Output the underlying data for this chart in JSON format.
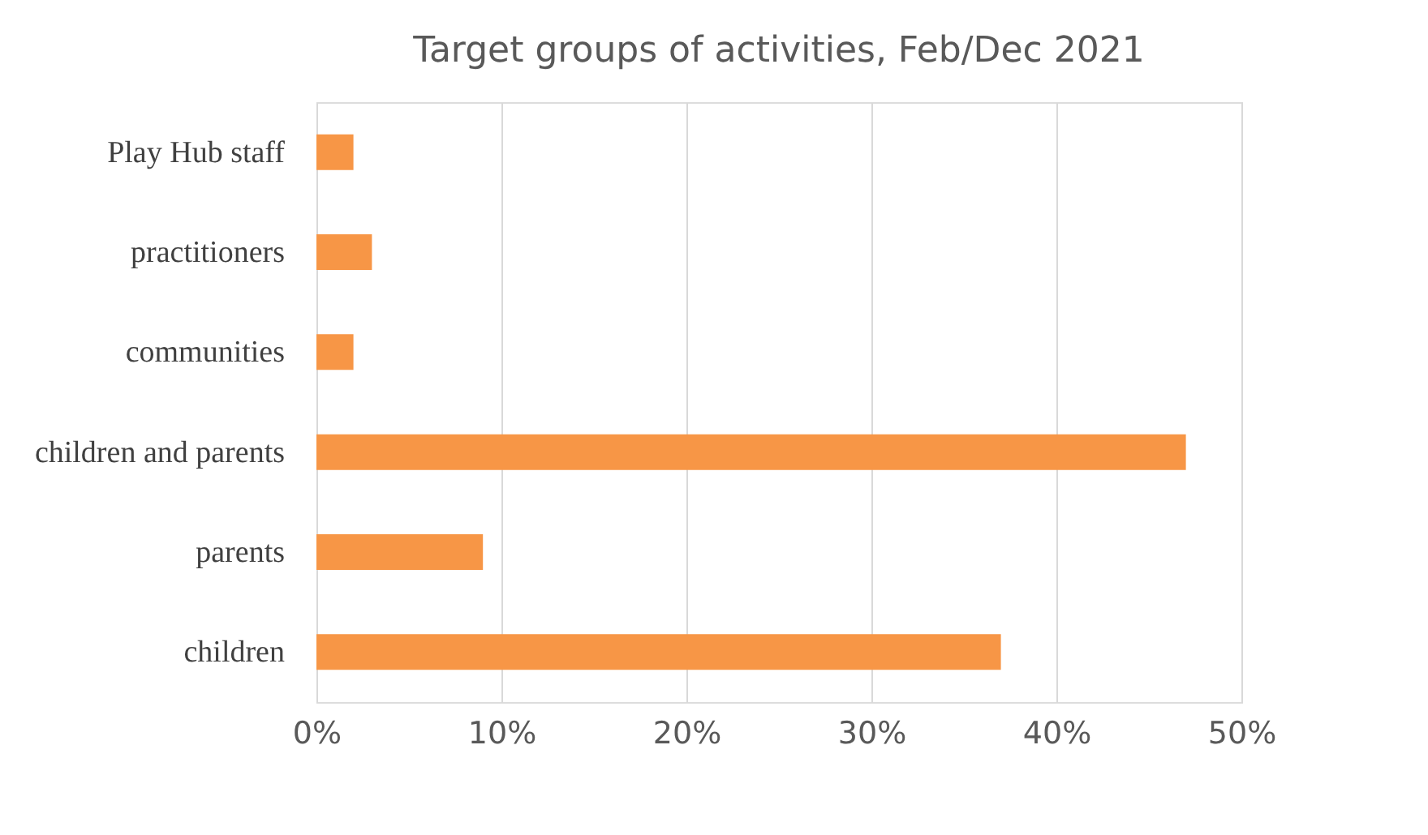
{
  "chart_data": {
    "type": "bar",
    "orientation": "horizontal",
    "title": "Target groups of activities, Feb/Dec 2021",
    "categories": [
      "Play Hub staff",
      "practitioners",
      "communities",
      "children and parents",
      "parents",
      "children"
    ],
    "values": [
      2,
      3,
      2,
      47,
      9,
      37
    ],
    "color": "#f79646",
    "xlim": [
      0,
      50
    ],
    "xticks": [
      {
        "value": 0,
        "label": "0%"
      },
      {
        "value": 10,
        "label": "10%"
      },
      {
        "value": 20,
        "label": "20%"
      },
      {
        "value": 30,
        "label": "30%"
      },
      {
        "value": 40,
        "label": "40%"
      },
      {
        "value": 50,
        "label": "50%"
      }
    ],
    "grid": "x"
  }
}
